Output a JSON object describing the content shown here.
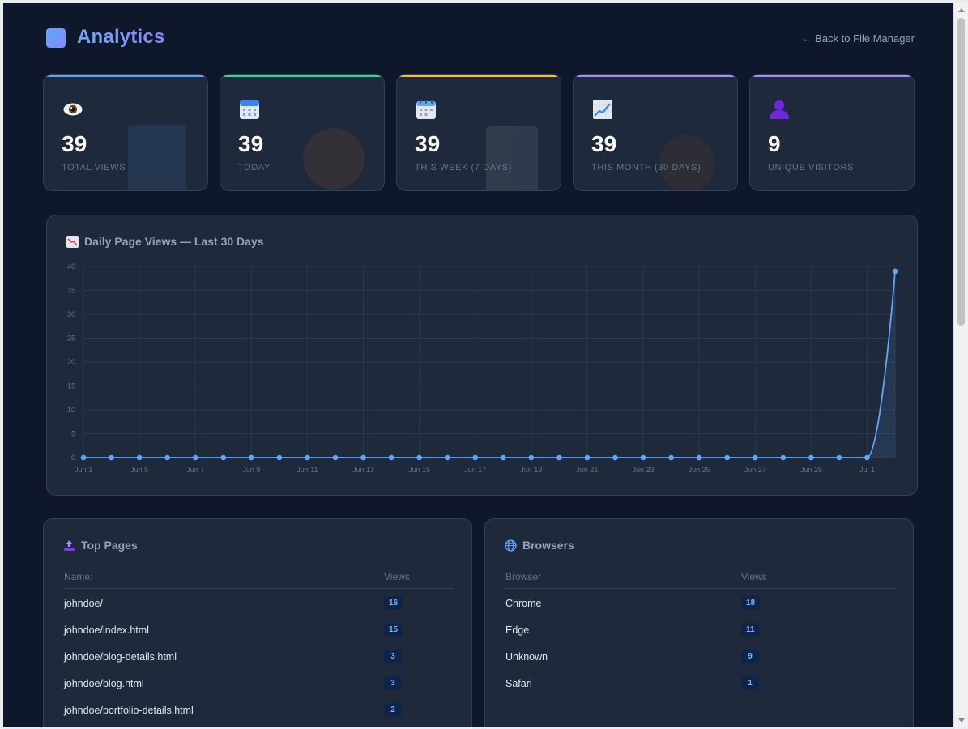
{
  "header": {
    "title": "Analytics",
    "back_link": "← Back to File Manager"
  },
  "stats": [
    {
      "value": "39",
      "label": "TOTAL VIEWS",
      "icon": "eye-icon",
      "accent": "#60a5fa"
    },
    {
      "value": "39",
      "label": "TODAY",
      "icon": "calendar-icon",
      "accent": "#34d399"
    },
    {
      "value": "39",
      "label": "THIS WEEK (7 DAYS)",
      "icon": "spiral-calendar-icon",
      "accent": "#fbbf24"
    },
    {
      "value": "39",
      "label": "THIS MONTH (30 DAYS)",
      "icon": "chart-increasing-icon",
      "accent": "#a78bfa"
    },
    {
      "value": "9",
      "label": "UNIQUE VISITORS",
      "icon": "user-silhouette-icon",
      "accent": "#a78bfa"
    }
  ],
  "chart_panel": {
    "title": "Daily Page Views — Last 30 Days"
  },
  "chart_data": {
    "type": "area",
    "title": "Daily Page Views — Last 30 Days",
    "x": [
      "Jun 3",
      "Jun 4",
      "Jun 5",
      "Jun 6",
      "Jun 7",
      "Jun 8",
      "Jun 9",
      "Jun 10",
      "Jun 11",
      "Jun 12",
      "Jun 13",
      "Jun 14",
      "Jun 15",
      "Jun 16",
      "Jun 17",
      "Jun 18",
      "Jun 19",
      "Jun 20",
      "Jun 21",
      "Jun 22",
      "Jun 23",
      "Jun 24",
      "Jun 25",
      "Jun 26",
      "Jun 27",
      "Jun 28",
      "Jun 29",
      "Jun 30",
      "Jul 1",
      "Jul 2"
    ],
    "x_tick_labels": [
      "Jun 3",
      "Jun 5",
      "Jun 7",
      "Jun 9",
      "Jun 11",
      "Jun 13",
      "Jun 15",
      "Jun 17",
      "Jun 19",
      "Jun 21",
      "Jun 23",
      "Jun 25",
      "Jun 27",
      "Jun 29",
      "Jul 1"
    ],
    "series": [
      {
        "values": [
          0,
          0,
          0,
          0,
          0,
          0,
          0,
          0,
          0,
          0,
          0,
          0,
          0,
          0,
          0,
          0,
          0,
          0,
          0,
          0,
          0,
          0,
          0,
          0,
          0,
          0,
          0,
          0,
          0,
          39
        ],
        "color": "#60a5fa"
      }
    ],
    "y_ticks": [
      0,
      5,
      10,
      15,
      20,
      25,
      30,
      35,
      40
    ],
    "ylim": [
      0,
      40
    ],
    "grid": true,
    "legend": "none"
  },
  "top_pages": {
    "title": "Top Pages",
    "col_name": "Name:",
    "col_views": "Views",
    "rows": [
      {
        "name": "johndoe/",
        "views": "16"
      },
      {
        "name": "johndoe/index.html",
        "views": "15"
      },
      {
        "name": "johndoe/blog-details.html",
        "views": "3"
      },
      {
        "name": "johndoe/blog.html",
        "views": "3"
      },
      {
        "name": "johndoe/portfolio-details.html",
        "views": "2"
      }
    ]
  },
  "browsers": {
    "title": "Browsers",
    "col_name": "Browser",
    "col_views": "Views",
    "rows": [
      {
        "name": "Chrome",
        "views": "18"
      },
      {
        "name": "Edge",
        "views": "11"
      },
      {
        "name": "Unknown",
        "views": "9"
      },
      {
        "name": "Safari",
        "views": "1"
      }
    ]
  }
}
